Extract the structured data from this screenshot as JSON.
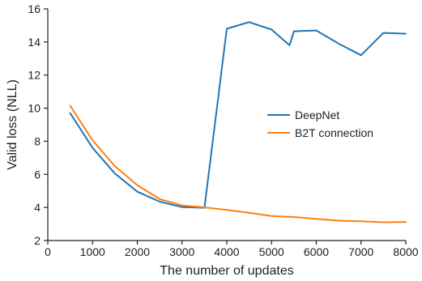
{
  "chart_data": {
    "type": "line",
    "xlabel": "The number of updates",
    "ylabel": "Valid loss (NLL)",
    "xlim": [
      0,
      8000
    ],
    "ylim": [
      2,
      16
    ],
    "xticks": [
      0,
      1000,
      2000,
      3000,
      4000,
      5000,
      6000,
      7000,
      8000
    ],
    "yticks": [
      2,
      4,
      6,
      8,
      10,
      12,
      14,
      16
    ],
    "grid": false,
    "legend_position": "right",
    "series": [
      {
        "name": "DeepNet",
        "color": "#1f77b4",
        "x": [
          500,
          1000,
          1500,
          2000,
          2500,
          3000,
          3500,
          4000,
          4500,
          5000,
          5400,
          5500,
          6000,
          6500,
          7000,
          7500,
          8000
        ],
        "y": [
          9.7,
          7.6,
          6.05,
          4.95,
          4.35,
          4.02,
          3.98,
          14.8,
          15.2,
          14.75,
          13.8,
          14.65,
          14.7,
          13.9,
          13.2,
          14.55,
          14.5
        ]
      },
      {
        "name": "B2T connection",
        "color": "#ff7f0e",
        "x": [
          500,
          1000,
          1500,
          2000,
          2500,
          3000,
          3500,
          4000,
          4500,
          5000,
          5500,
          6000,
          6500,
          7000,
          7500,
          8000
        ],
        "y": [
          10.15,
          8.05,
          6.5,
          5.35,
          4.5,
          4.12,
          4.0,
          3.85,
          3.68,
          3.48,
          3.42,
          3.3,
          3.2,
          3.16,
          3.1,
          3.12
        ]
      }
    ]
  }
}
